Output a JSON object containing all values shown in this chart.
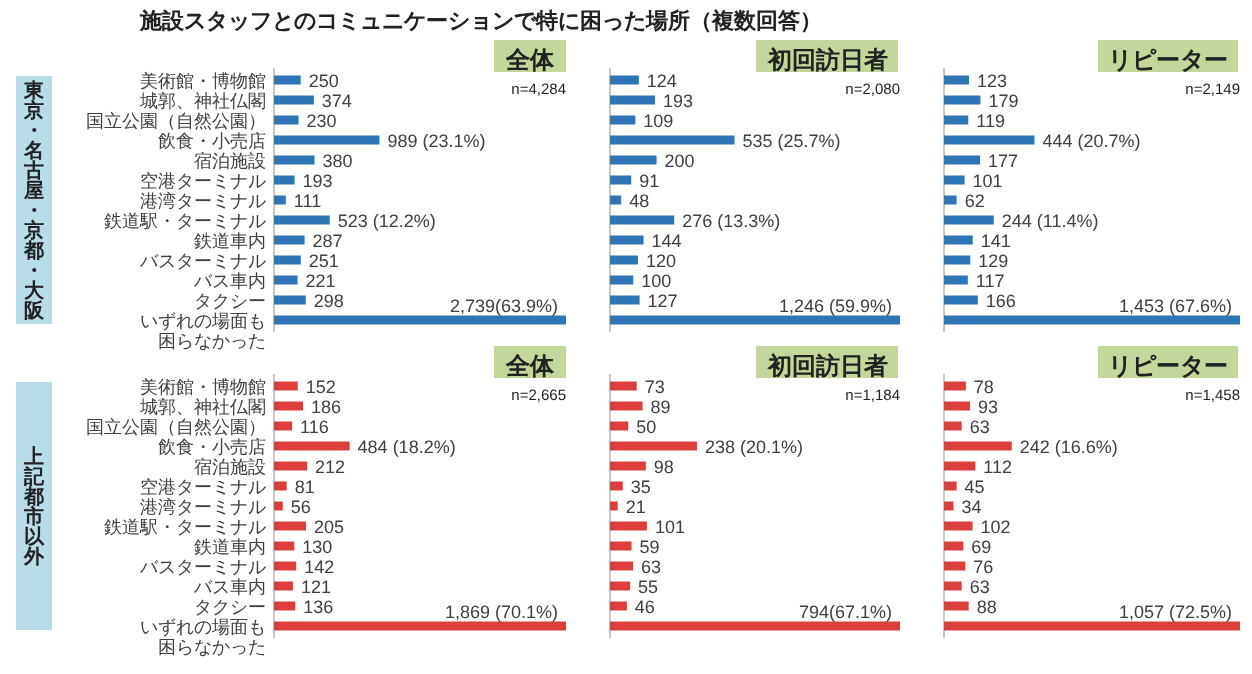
{
  "chart_data": [
    {
      "type": "bar",
      "orientation": "horizontal",
      "title": "全体",
      "subtitle": "n=4,284",
      "ylabel": "東京・名古屋・京都・大阪",
      "annotations": [
        "施設スタッフとのコミュニケーションで特に困った場所（複数回答）"
      ],
      "tick_labels": "y",
      "color": "#2e75b6",
      "categories": [
        "美術館・博物館",
        "城郭、神社仏閣",
        "国立公園（自然公園）",
        "飲食・小売店",
        "宿泊施設",
        "空港ターミナル",
        "港湾ターミナル",
        "鉄道駅・ターミナル",
        "鉄道車内",
        "バスターミナル",
        "バス車内",
        "タクシー",
        "いずれの場面も困らなかった"
      ],
      "values": [
        250,
        374,
        230,
        989,
        380,
        193,
        111,
        523,
        287,
        251,
        221,
        298,
        2739
      ],
      "value_labels": [
        "250",
        "374",
        "230",
        "989 (23.1%)",
        "380",
        "193",
        "111",
        "523 (12.2%)",
        "287",
        "251",
        "221",
        "298",
        "2,739(63.9%)"
      ]
    },
    {
      "type": "bar",
      "orientation": "horizontal",
      "title": "初回訪日者",
      "subtitle": "n=2,080",
      "tick_labels": false,
      "color": "#2e75b6",
      "categories": [
        null,
        null,
        null,
        null,
        null,
        null,
        null,
        null,
        null,
        null,
        null,
        null,
        null
      ],
      "values": [
        124,
        193,
        109,
        535,
        200,
        91,
        48,
        276,
        144,
        120,
        100,
        127,
        1246
      ],
      "value_labels": [
        "124",
        "193",
        "109",
        "535 (25.7%)",
        "200",
        "91",
        "48",
        "276 (13.3%)",
        "144",
        "120",
        "100",
        "127",
        "1,246 (59.9%)"
      ]
    },
    {
      "type": "bar",
      "orientation": "horizontal",
      "title": "リピーター",
      "subtitle": "n=2,149",
      "tick_labels": false,
      "color": "#2e75b6",
      "categories": [
        null,
        null,
        null,
        null,
        null,
        null,
        null,
        null,
        null,
        null,
        null,
        null,
        null
      ],
      "values": [
        123,
        179,
        119,
        444,
        177,
        101,
        62,
        244,
        141,
        129,
        117,
        166,
        1453
      ],
      "value_labels": [
        "123",
        "179",
        "119",
        "444 (20.7%)",
        "177",
        "101",
        "62",
        "244 (11.4%)",
        "141",
        "129",
        "117",
        "166",
        "1,453 (67.6%)"
      ]
    },
    {
      "type": "bar",
      "orientation": "horizontal",
      "title": "全体",
      "subtitle": "n=2,665",
      "ylabel": "上記都市以外",
      "tick_labels": "y",
      "color": "#d9403b",
      "categories": [
        "美術館・博物館",
        "城郭、神社仏閣",
        "国立公園（自然公園）",
        "飲食・小売店",
        "宿泊施設",
        "空港ターミナル",
        "港湾ターミナル",
        "鉄道駅・ターミナル",
        "鉄道車内",
        "バスターミナル",
        "バス車内",
        "タクシー",
        "いずれの場面も困らなかった"
      ],
      "values": [
        152,
        186,
        116,
        484,
        212,
        81,
        56,
        205,
        130,
        142,
        121,
        136,
        1869
      ],
      "value_labels": [
        "152",
        "186",
        "116",
        "484 (18.2%)",
        "212",
        "81",
        "56",
        "205",
        "130",
        "142",
        "121",
        "136",
        "1,869 (70.1%)"
      ]
    },
    {
      "type": "bar",
      "orientation": "horizontal",
      "title": "初回訪日者",
      "subtitle": "n=1,184",
      "tick_labels": false,
      "color": "#d9403b",
      "categories": [
        null,
        null,
        null,
        null,
        null,
        null,
        null,
        null,
        null,
        null,
        null,
        null,
        null
      ],
      "values": [
        73,
        89,
        50,
        238,
        98,
        35,
        21,
        101,
        59,
        63,
        55,
        46,
        794
      ],
      "value_labels": [
        "73",
        "89",
        "50",
        "238 (20.1%)",
        "98",
        "35",
        "21",
        "101",
        "59",
        "63",
        "55",
        "46",
        "794(67.1%)"
      ]
    },
    {
      "type": "bar",
      "orientation": "horizontal",
      "title": "リピーター",
      "subtitle": "n=1,458",
      "tick_labels": false,
      "color": "#d9403b",
      "categories": [
        null,
        null,
        null,
        null,
        null,
        null,
        null,
        null,
        null,
        null,
        null,
        null,
        null
      ],
      "values": [
        78,
        93,
        63,
        242,
        112,
        45,
        34,
        102,
        69,
        76,
        63,
        88,
        1057
      ],
      "value_labels": [
        "78",
        "93",
        "63",
        "242 (16.6%)",
        "112",
        "45",
        "34",
        "102",
        "69",
        "76",
        "63",
        "88",
        "1,057 (72.5%)"
      ]
    }
  ]
}
